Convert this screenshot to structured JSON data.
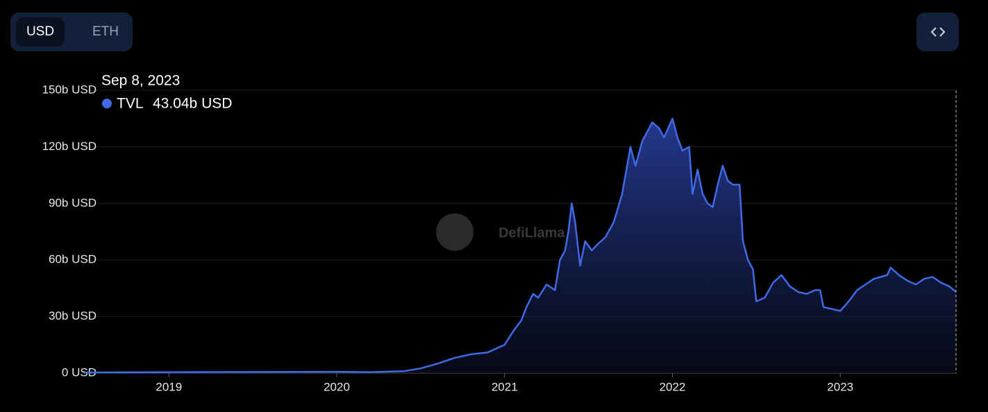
{
  "controls": {
    "currency_options": [
      "USD",
      "ETH"
    ]
  },
  "watermark": "DefiLlama",
  "tooltip": {
    "date": "Sep 8, 2023",
    "value_label": "43.04b USD"
  },
  "chart_data": {
    "type": "area",
    "x": [
      2018.5,
      2019.0,
      2019.5,
      2020.0,
      2020.2,
      2020.4,
      2020.5,
      2020.6,
      2020.7,
      2020.8,
      2020.9,
      2020.95,
      2021.0,
      2021.05,
      2021.1,
      2021.13,
      2021.17,
      2021.2,
      2021.25,
      2021.3,
      2021.33,
      2021.36,
      2021.38,
      2021.4,
      2021.42,
      2021.45,
      2021.48,
      2021.52,
      2021.55,
      2021.6,
      2021.65,
      2021.7,
      2021.75,
      2021.78,
      2021.82,
      2021.85,
      2021.88,
      2021.92,
      2021.95,
      2022.0,
      2022.03,
      2022.06,
      2022.1,
      2022.12,
      2022.15,
      2022.18,
      2022.21,
      2022.24,
      2022.27,
      2022.3,
      2022.33,
      2022.36,
      2022.4,
      2022.42,
      2022.45,
      2022.48,
      2022.5,
      2022.55,
      2022.6,
      2022.65,
      2022.7,
      2022.75,
      2022.8,
      2022.85,
      2022.88,
      2022.9,
      2022.95,
      2023.0,
      2023.05,
      2023.1,
      2023.15,
      2023.2,
      2023.28,
      2023.3,
      2023.35,
      2023.4,
      2023.45,
      2023.5,
      2023.55,
      2023.6,
      2023.65,
      2023.69
    ],
    "series": [
      {
        "name": "TVL",
        "color": "#3f6ae8",
        "values": [
          0.3,
          0.5,
          0.6,
          0.7,
          0.5,
          1.0,
          2.5,
          5,
          8,
          10,
          11,
          13,
          15,
          22,
          28,
          35,
          42,
          40,
          47,
          44,
          60,
          65,
          75,
          90,
          80,
          57,
          70,
          65,
          68,
          72,
          80,
          95,
          120,
          110,
          123,
          128,
          133,
          130,
          125,
          135,
          125,
          118,
          120,
          95,
          108,
          95,
          90,
          88,
          100,
          110,
          102,
          100,
          100,
          70,
          60,
          55,
          38,
          40,
          48,
          52,
          46,
          43,
          42,
          44,
          44,
          35,
          34,
          33,
          38,
          44,
          47,
          50,
          52,
          56,
          52,
          49,
          47,
          50,
          51,
          48,
          46,
          43.04
        ]
      }
    ],
    "xlim": [
      2018.49,
      2023.69
    ],
    "xticks": [
      2019,
      2020,
      2021,
      2022,
      2023
    ],
    "ylim": [
      0,
      150
    ],
    "yticks": [
      {
        "value": 0,
        "label": "0 USD"
      },
      {
        "value": 30,
        "label": "30b USD"
      },
      {
        "value": 60,
        "label": "60b USD"
      },
      {
        "value": 90,
        "label": "90b USD"
      },
      {
        "value": 120,
        "label": "120b USD"
      },
      {
        "value": 150,
        "label": "150b USD"
      }
    ],
    "grid": true
  }
}
